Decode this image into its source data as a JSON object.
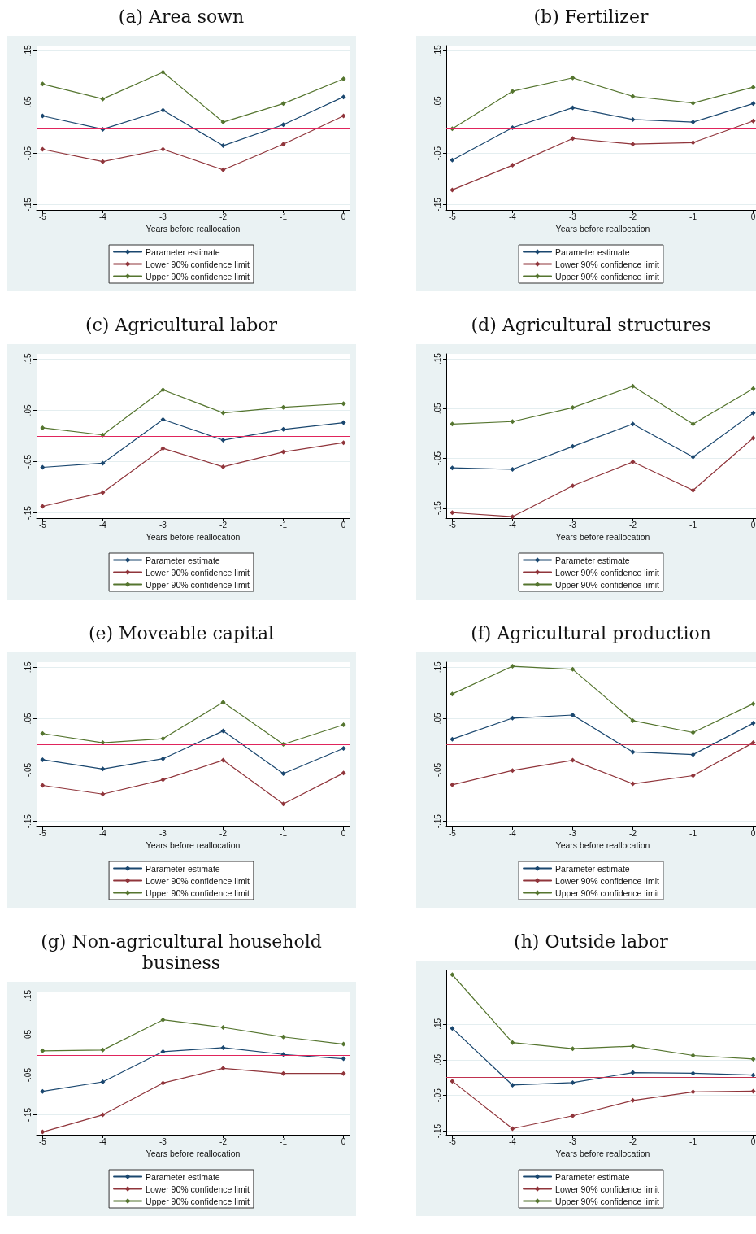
{
  "chart_data": [
    {
      "type": "line",
      "title": "(a) Area sown",
      "xlabel": "Years before reallocation",
      "x": [
        -5,
        -4,
        -3,
        -2,
        -1,
        0
      ],
      "xlim": [
        -5.1,
        0.1
      ],
      "xticks": [
        -5,
        -4,
        -3,
        -2,
        -1,
        0
      ],
      "ylim": [
        -0.16,
        0.16
      ],
      "yticks": [
        {
          "value": 0.15,
          "label": ".15"
        },
        {
          "value": 0.05,
          "label": ".05"
        },
        {
          "value": -0.05,
          "label": "-.05"
        },
        {
          "value": -0.15,
          "label": "-.15"
        }
      ],
      "grid": "y",
      "legend": "bottom",
      "marker": "diamond",
      "line_style": "solid",
      "ref_lines": [
        {
          "axis": "y",
          "value": 0,
          "color": "#e0245c"
        }
      ],
      "series": [
        {
          "name": "Parameter estimate",
          "color": "#1a476f",
          "values": [
            0.023,
            -0.003,
            0.034,
            -0.035,
            0.006,
            0.06
          ]
        },
        {
          "name": "Lower 90% confidence limit",
          "color": "#90353b",
          "values": [
            -0.042,
            -0.066,
            -0.042,
            -0.082,
            -0.032,
            0.023
          ]
        },
        {
          "name": "Upper 90% confidence limit",
          "color": "#55752f",
          "values": [
            0.085,
            0.056,
            0.108,
            0.011,
            0.047,
            0.095
          ]
        }
      ]
    },
    {
      "type": "line",
      "title": "(b) Fertilizer",
      "xlabel": "Years before reallocation",
      "x": [
        -5,
        -4,
        -3,
        -2,
        -1,
        0
      ],
      "xlim": [
        -5.1,
        0.1
      ],
      "xticks": [
        -5,
        -4,
        -3,
        -2,
        -1,
        0
      ],
      "ylim": [
        -0.16,
        0.16
      ],
      "yticks": [
        {
          "value": 0.15,
          "label": ".15"
        },
        {
          "value": 0.05,
          "label": ".05"
        },
        {
          "value": -0.05,
          "label": "-.05"
        },
        {
          "value": -0.15,
          "label": "-.15"
        }
      ],
      "grid": "y",
      "legend": "bottom",
      "marker": "diamond",
      "line_style": "solid",
      "ref_lines": [
        {
          "axis": "y",
          "value": 0,
          "color": "#e0245c"
        }
      ],
      "series": [
        {
          "name": "Parameter estimate",
          "color": "#1a476f",
          "values": [
            -0.063,
            0,
            0.039,
            0.016,
            0.011,
            0.047
          ]
        },
        {
          "name": "Lower 90% confidence limit",
          "color": "#90353b",
          "values": [
            -0.121,
            -0.073,
            -0.021,
            -0.032,
            -0.029,
            0.013
          ]
        },
        {
          "name": "Upper 90% confidence limit",
          "color": "#55752f",
          "values": [
            -0.002,
            0.071,
            0.097,
            0.061,
            0.048,
            0.079
          ]
        }
      ]
    },
    {
      "type": "line",
      "title": "(c) Agricultural labor",
      "xlabel": "Years before reallocation",
      "x": [
        -5,
        -4,
        -3,
        -2,
        -1,
        0
      ],
      "xlim": [
        -5.1,
        0.1
      ],
      "xticks": [
        -5,
        -4,
        -3,
        -2,
        -1,
        0
      ],
      "ylim": [
        -0.16,
        0.16
      ],
      "yticks": [
        {
          "value": 0.15,
          "label": ".15"
        },
        {
          "value": 0.05,
          "label": ".05"
        },
        {
          "value": -0.05,
          "label": "-.05"
        },
        {
          "value": -0.15,
          "label": "-.15"
        }
      ],
      "grid": "y",
      "legend": "bottom",
      "marker": "diamond",
      "line_style": "solid",
      "ref_lines": [
        {
          "axis": "y",
          "value": 0,
          "color": "#e0245c"
        }
      ],
      "series": [
        {
          "name": "Parameter estimate",
          "color": "#1a476f",
          "values": [
            -0.061,
            -0.053,
            0.032,
            -0.008,
            0.013,
            0.026
          ]
        },
        {
          "name": "Lower 90% confidence limit",
          "color": "#90353b",
          "values": [
            -0.137,
            -0.11,
            -0.024,
            -0.06,
            -0.031,
            -0.013
          ]
        },
        {
          "name": "Upper 90% confidence limit",
          "color": "#55752f",
          "values": [
            0.016,
            0.002,
            0.09,
            0.045,
            0.056,
            0.063
          ]
        }
      ]
    },
    {
      "type": "line",
      "title": "(d) Agricultural structures",
      "xlabel": "Years before reallocation",
      "x": [
        -5,
        -4,
        -3,
        -2,
        -1,
        0
      ],
      "xlim": [
        -5.1,
        0.1
      ],
      "xticks": [
        -5,
        -4,
        -3,
        -2,
        -1,
        0
      ],
      "ylim": [
        -0.17,
        0.16
      ],
      "yticks": [
        {
          "value": 0.15,
          "label": ".15"
        },
        {
          "value": 0.05,
          "label": ".05"
        },
        {
          "value": -0.05,
          "label": "-.05"
        },
        {
          "value": -0.15,
          "label": "-.15"
        }
      ],
      "grid": "y",
      "legend": "bottom",
      "marker": "diamond",
      "line_style": "solid",
      "ref_lines": [
        {
          "axis": "y",
          "value": 0,
          "color": "#e0245c"
        }
      ],
      "series": [
        {
          "name": "Parameter estimate",
          "color": "#1a476f",
          "values": [
            -0.069,
            -0.072,
            -0.026,
            0.019,
            -0.047,
            0.041
          ]
        },
        {
          "name": "Lower 90% confidence limit",
          "color": "#90353b",
          "values": [
            -0.159,
            -0.167,
            -0.105,
            -0.057,
            -0.114,
            -0.009
          ]
        },
        {
          "name": "Upper 90% confidence limit",
          "color": "#55752f",
          "values": [
            0.019,
            0.024,
            0.052,
            0.095,
            0.019,
            0.09
          ]
        }
      ]
    },
    {
      "type": "line",
      "title": "(e) Moveable capital",
      "xlabel": "Years before reallocation",
      "x": [
        -5,
        -4,
        -3,
        -2,
        -1,
        0
      ],
      "xlim": [
        -5.1,
        0.1
      ],
      "xticks": [
        -5,
        -4,
        -3,
        -2,
        -1,
        0
      ],
      "ylim": [
        -0.16,
        0.16
      ],
      "yticks": [
        {
          "value": 0.15,
          "label": ".15"
        },
        {
          "value": 0.05,
          "label": ".05"
        },
        {
          "value": -0.05,
          "label": "-.05"
        },
        {
          "value": -0.15,
          "label": "-.15"
        }
      ],
      "grid": "y",
      "legend": "bottom",
      "marker": "diamond",
      "line_style": "solid",
      "ref_lines": [
        {
          "axis": "y",
          "value": 0,
          "color": "#e0245c"
        }
      ],
      "series": [
        {
          "name": "Parameter estimate",
          "color": "#1a476f",
          "values": [
            -0.03,
            -0.048,
            -0.028,
            0.026,
            -0.057,
            -0.008
          ]
        },
        {
          "name": "Lower 90% confidence limit",
          "color": "#90353b",
          "values": [
            -0.08,
            -0.097,
            -0.069,
            -0.031,
            -0.116,
            -0.056
          ]
        },
        {
          "name": "Upper 90% confidence limit",
          "color": "#55752f",
          "values": [
            0.021,
            0.003,
            0.011,
            0.082,
            0,
            0.038
          ]
        }
      ]
    },
    {
      "type": "line",
      "title": "(f) Agricultural production",
      "xlabel": "Years before reallocation",
      "x": [
        -5,
        -4,
        -3,
        -2,
        -1,
        0
      ],
      "xlim": [
        -5.1,
        0.1
      ],
      "xticks": [
        -5,
        -4,
        -3,
        -2,
        -1,
        0
      ],
      "ylim": [
        -0.16,
        0.16
      ],
      "yticks": [
        {
          "value": 0.15,
          "label": ".15"
        },
        {
          "value": 0.05,
          "label": ".05"
        },
        {
          "value": -0.05,
          "label": "-.05"
        },
        {
          "value": -0.15,
          "label": "-.15"
        }
      ],
      "grid": "y",
      "legend": "bottom",
      "marker": "diamond",
      "line_style": "solid",
      "ref_lines": [
        {
          "axis": "y",
          "value": 0,
          "color": "#c0314f"
        }
      ],
      "series": [
        {
          "name": "Parameter estimate",
          "color": "#1a476f",
          "values": [
            0.01,
            0.051,
            0.057,
            -0.015,
            -0.02,
            0.041
          ]
        },
        {
          "name": "Lower 90% confidence limit",
          "color": "#90353b",
          "values": [
            -0.079,
            -0.051,
            -0.031,
            -0.077,
            -0.061,
            0.003
          ]
        },
        {
          "name": "Upper 90% confidence limit",
          "color": "#55752f",
          "values": [
            0.098,
            0.152,
            0.146,
            0.046,
            0.023,
            0.079
          ]
        }
      ]
    },
    {
      "type": "line",
      "title": "(g) Non-agricultural household business",
      "xlabel": "Years before reallocation",
      "x": [
        -5,
        -4,
        -3,
        -2,
        -1,
        0
      ],
      "xlim": [
        -5.1,
        0.1
      ],
      "xticks": [
        -5,
        -4,
        -3,
        -2,
        -1,
        0
      ],
      "ylim": [
        -0.2,
        0.16
      ],
      "yticks": [
        {
          "value": 0.15,
          "label": ".15"
        },
        {
          "value": 0.05,
          "label": ".05"
        },
        {
          "value": -0.05,
          "label": "-.05"
        },
        {
          "value": -0.15,
          "label": "-.15"
        }
      ],
      "grid": "y",
      "legend": "bottom",
      "marker": "diamond",
      "line_style": "solid",
      "ref_lines": [
        {
          "axis": "y",
          "value": 0,
          "color": "#e0245c"
        }
      ],
      "series": [
        {
          "name": "Parameter estimate",
          "color": "#1a476f",
          "values": [
            -0.091,
            -0.067,
            0.009,
            0.019,
            0.002,
            -0.009
          ]
        },
        {
          "name": "Lower 90% confidence limit",
          "color": "#90353b",
          "values": [
            -0.193,
            -0.15,
            -0.07,
            -0.033,
            -0.046,
            -0.046
          ]
        },
        {
          "name": "Upper 90% confidence limit",
          "color": "#55752f",
          "values": [
            0.011,
            0.013,
            0.089,
            0.07,
            0.046,
            0.028
          ]
        }
      ]
    },
    {
      "type": "line",
      "title": "(h) Outside labor",
      "xlabel": "Years before reallocation",
      "x": [
        -5,
        -4,
        -3,
        -2,
        -1,
        0
      ],
      "xlim": [
        -5.1,
        0.1
      ],
      "xticks": [
        -5,
        -4,
        -3,
        -2,
        -1,
        0
      ],
      "ylim": [
        -0.16,
        0.3
      ],
      "yticks": [
        {
          "value": 0.15,
          "label": ".15"
        },
        {
          "value": 0.05,
          "label": ".05"
        },
        {
          "value": -0.05,
          "label": "-.05"
        },
        {
          "value": -0.15,
          "label": "-.15"
        }
      ],
      "grid": "y",
      "legend": "bottom",
      "marker": "diamond",
      "line_style": "solid",
      "ref_lines": [
        {
          "axis": "y",
          "value": 0,
          "color": "#c0314f"
        }
      ],
      "series": [
        {
          "name": "Parameter estimate",
          "color": "#1a476f",
          "values": [
            0.138,
            -0.021,
            -0.014,
            0.014,
            0.012,
            0.007
          ]
        },
        {
          "name": "Lower 90% confidence limit",
          "color": "#90353b",
          "values": [
            -0.01,
            -0.143,
            -0.107,
            -0.064,
            -0.04,
            -0.038
          ]
        },
        {
          "name": "Upper 90% confidence limit",
          "color": "#55752f",
          "values": [
            0.288,
            0.098,
            0.081,
            0.088,
            0.062,
            0.052
          ]
        }
      ]
    }
  ]
}
